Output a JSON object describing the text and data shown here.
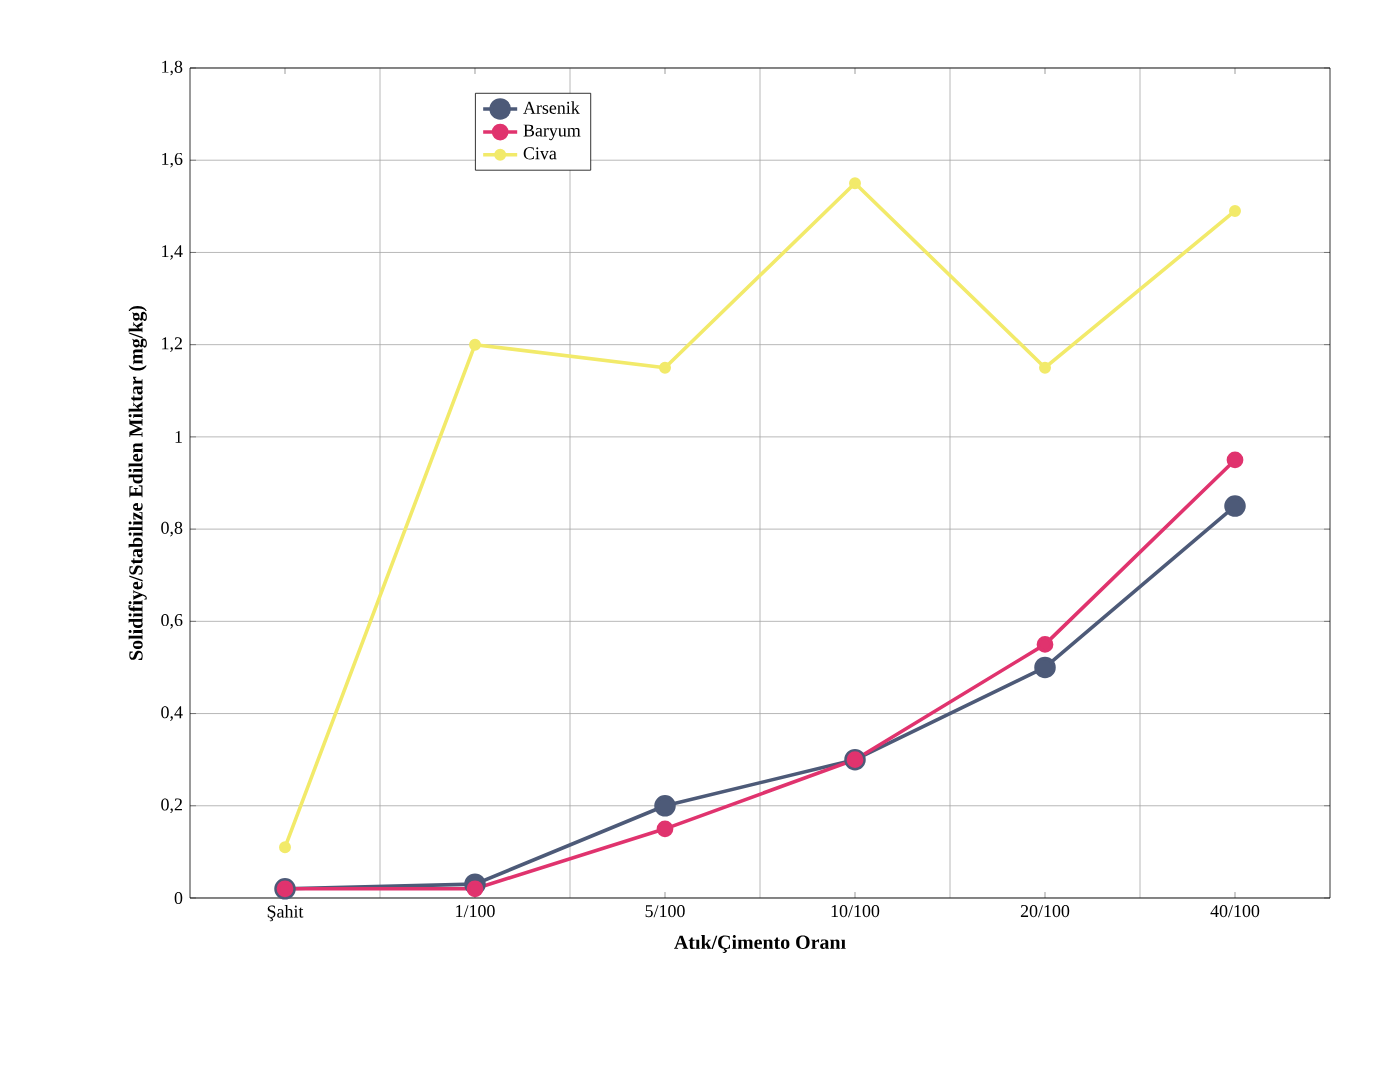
{
  "chart_data": {
    "type": "line",
    "xlabel": "Atık/Çimento Oranı",
    "ylabel": "Solidifiye/Stabilize Edilen Miktar (mg/kg)",
    "categories": [
      "Şahit",
      "1/100",
      "5/100",
      "10/100",
      "20/100",
      "40/100"
    ],
    "series": [
      {
        "name": "Arsenik",
        "color": "#4d5a78",
        "values": [
          0.02,
          0.03,
          0.2,
          0.3,
          0.5,
          0.85
        ]
      },
      {
        "name": "Baryum",
        "color": "#e0336e",
        "values": [
          0.02,
          0.02,
          0.15,
          0.3,
          0.55,
          0.95
        ]
      },
      {
        "name": "Civa",
        "color": "#f2ea6a",
        "values": [
          0.11,
          1.2,
          1.15,
          1.55,
          1.15,
          1.49
        ]
      }
    ],
    "ylim": [
      0,
      1.8
    ],
    "yticks": [
      0,
      {
        "value": 0.2,
        "label": "0,2"
      },
      {
        "value": 0.4,
        "label": "0,4"
      },
      {
        "value": 0.6,
        "label": "0,6"
      },
      {
        "value": 0.8,
        "label": "0,8"
      },
      1,
      {
        "value": 1.2,
        "label": "1,2"
      },
      {
        "value": 1.4,
        "label": "1,4"
      },
      {
        "value": 1.6,
        "label": "1,6"
      },
      {
        "value": 1.8,
        "label": "1,8"
      }
    ],
    "grid": true,
    "legend": "top left",
    "marker": "circle",
    "line_style": "solid"
  }
}
